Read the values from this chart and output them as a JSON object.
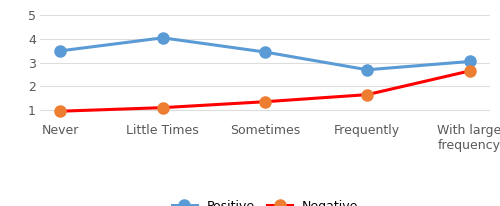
{
  "categories": [
    "Never",
    "Little Times",
    "Sometimes",
    "Frequently",
    "With large\nfrequency"
  ],
  "positive_values": [
    3.5,
    4.05,
    3.45,
    2.7,
    3.05
  ],
  "negative_values": [
    0.95,
    1.1,
    1.35,
    1.65,
    2.65
  ],
  "positive_line_color": "#5B9BD5",
  "positive_marker_color": "#5B9BD5",
  "negative_line_color": "#FF0000",
  "negative_marker_color": "#ED7D31",
  "positive_label": "Positive",
  "negative_label": "Negative",
  "marker": "o",
  "ylim": [
    0.6,
    5.3
  ],
  "yticks": [
    1,
    2,
    3,
    4,
    5
  ],
  "background_color": "#ffffff",
  "grid_color": "#DDDDDD",
  "line_width": 2.2,
  "marker_size": 8,
  "tick_fontsize": 9,
  "legend_fontsize": 9
}
